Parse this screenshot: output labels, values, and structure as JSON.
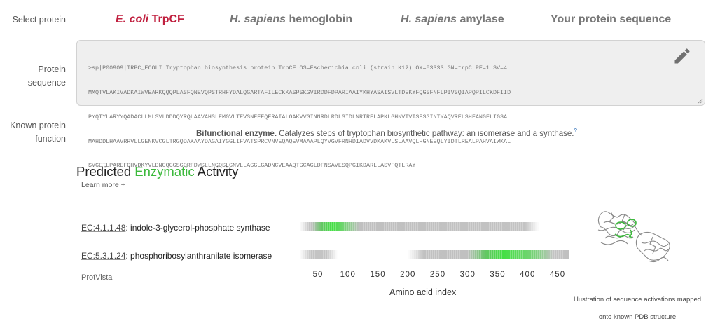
{
  "labels": {
    "select_protein": "Select protein",
    "protein_sequence": [
      "Protein",
      "sequence"
    ],
    "known_function": [
      "Known protein",
      "function"
    ]
  },
  "tabs": [
    {
      "italic": "E. coli",
      "rest": " TrpCF",
      "active": true
    },
    {
      "italic": "H. sapiens",
      "rest": " hemoglobin",
      "active": false
    },
    {
      "italic": "H. sapiens",
      "rest": " amylase",
      "active": false
    },
    {
      "italic": "",
      "rest": "Your protein sequence",
      "active": false
    }
  ],
  "sequence": {
    "lines": [
      ">sp|P00909|TRPC_ECOLI Tryptophan biosynthesis protein TrpCF OS=Escherichia coli (strain K12) OX=83333 GN=trpC PE=1 SV=4",
      "MMQTVLAKIVADKAIWVEARKQQQPLASFQNEVQPSTRHFYDALQGARTAFILECKKASPSKGVIRDDFDPARIAAIYKHYASAISVLTDEKYFQGSFNFLPIVSQIAPQPILCKDFIID",
      "PYQIYLARYYQADACLLMLSVLDDDQYRQLAAVAHSLEMGVLTEVSNEEEQERAIALGAKVVGINNRDLRDLSIDLNRTRELAPKLGHNVTVISESGINTYAQVRELSHFANGFLIGSAL",
      "MAHDDLHAAVRRVLLGENKVCGLTRGQDAKAAYDAGAIYGGLIFVATSPRCVNVEQAQEVMAAAPLQYVGVFRNHDIADVVDKAKVLSLAAVQLHGNEEQLYIDTLREALPAHVAIWKAL",
      "SVGETLPAREFQHVDKYVLDNGQGGSGQRFDWSLLNGQSLGNVLLAGGLGADNCVEAAQTGCAGLDFNSAVESQPGIKDARLLASVFQTLRAY"
    ]
  },
  "function": {
    "bold": "Bifunctional enzyme.",
    "text": " Catalyzes steps of tryptophan biosynthetic pathway: an isomerase and a synthase.",
    "ref": "?"
  },
  "predicted": {
    "title_pre": "Predicted ",
    "title_green": "Enzymatic",
    "title_post": " Activity",
    "learn_more": "Learn more  +",
    "protvista": "ProtVista"
  },
  "colors": {
    "accent_red": "#c0203f",
    "highlight_green": "#3cb93c"
  },
  "chart_data": {
    "type": "heatmap",
    "xlabel": "Amino acid index",
    "xlim": [
      20,
      470
    ],
    "x_ticks": [
      50,
      100,
      150,
      200,
      250,
      300,
      350,
      400,
      450
    ],
    "rows": [
      {
        "ec": "EC:4.1.1.48",
        "name": ": indole-3-glycerol-phosphate synthase",
        "range": [
          20,
          420
        ],
        "hotspots": [
          {
            "start": 40,
            "end": 120,
            "peak": 75
          }
        ]
      },
      {
        "ec": "EC:5.3.1.24",
        "name": ": phosphoribosylanthranilate isomerase",
        "range": [
          20,
          470
        ],
        "hotspots": [
          {
            "start": 300,
            "end": 470,
            "peak": 360
          }
        ]
      }
    ]
  },
  "structure_caption": [
    "Illustration of sequence activations mapped",
    "onto known PDB structure"
  ]
}
